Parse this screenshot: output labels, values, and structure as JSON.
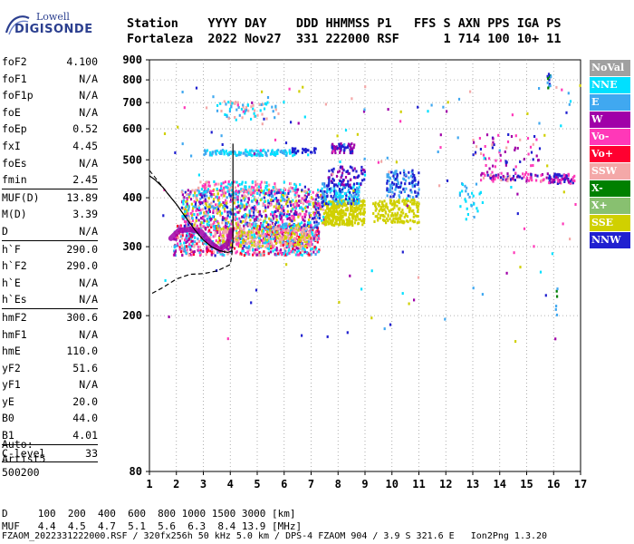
{
  "logo": {
    "line1": "Lowell",
    "line2": "DIGISONDE"
  },
  "header": {
    "labels": "Station    YYYY DAY    DDD HHMMSS P1   FFS S AXN PPS IGA PS",
    "values": "Fortaleza  2022 Nov27  331 222000 RSF      1 714 100 10+ 11"
  },
  "params": [
    [
      {
        "l": "foF2",
        "v": "4.100"
      },
      {
        "l": "foF1",
        "v": "N/A"
      },
      {
        "l": "foF1p",
        "v": "N/A"
      },
      {
        "l": "foE",
        "v": "N/A"
      },
      {
        "l": "foEp",
        "v": "0.52"
      },
      {
        "l": "fxI",
        "v": "4.45"
      },
      {
        "l": "foEs",
        "v": "N/A"
      },
      {
        "l": "fmin",
        "v": "2.45"
      }
    ],
    [
      {
        "l": "MUF(D)",
        "v": "13.89"
      },
      {
        "l": "M(D)",
        "v": "3.39"
      },
      {
        "l": "D",
        "v": "N/A"
      }
    ],
    [
      {
        "l": "h`F",
        "v": "290.0"
      },
      {
        "l": "h`F2",
        "v": "290.0"
      },
      {
        "l": "h`E",
        "v": "N/A"
      },
      {
        "l": "h`Es",
        "v": "N/A"
      }
    ],
    [
      {
        "l": "hmF2",
        "v": "300.6"
      },
      {
        "l": "hmF1",
        "v": "N/A"
      },
      {
        "l": "hmE",
        "v": "110.0"
      },
      {
        "l": "yF2",
        "v": "51.6"
      },
      {
        "l": "yF1",
        "v": "N/A"
      },
      {
        "l": "yE",
        "v": "20.0"
      },
      {
        "l": "B0",
        "v": "44.0"
      },
      {
        "l": "B1",
        "v": "4.01"
      }
    ],
    [
      {
        "l": "C-level",
        "v": "33"
      }
    ]
  ],
  "auto": {
    "line1": "Auto:",
    "line2": "Artist5",
    "line3": "500200"
  },
  "legend": [
    {
      "label": "NoVal",
      "color": "#a0a0a0"
    },
    {
      "label": "NNE",
      "color": "#00e0ff"
    },
    {
      "label": "E",
      "color": "#40a8f0"
    },
    {
      "label": "W",
      "color": "#a000a8"
    },
    {
      "label": "Vo-",
      "color": "#ff38b8"
    },
    {
      "label": "Vo+",
      "color": "#ff0030"
    },
    {
      "label": "SSW",
      "color": "#f4a8a8"
    },
    {
      "label": "X-",
      "color": "#008000"
    },
    {
      "label": "X+",
      "color": "#88c070"
    },
    {
      "label": "SSE",
      "color": "#d0d000"
    },
    {
      "label": "NNW",
      "color": "#2020d0"
    }
  ],
  "bottom": {
    "line1": "D     100  200  400  600  800 1000 1500 3000 [km]",
    "line2": "MUF   4.4  4.5  4.7  5.1  5.6  6.3  8.4 13.9 [MHz]"
  },
  "footer": "FZAOM_2022331222000.RSF / 320fx256h 50 kHz 5.0 km / DPS-4 FZAOM 904 / 3.9 S 321.6 E   Ion2Png 1.3.20",
  "chart_data": {
    "type": "scatter",
    "x_ticks": [
      "1",
      "2",
      "3",
      "4",
      "5",
      "6",
      "7",
      "8",
      "9",
      "10",
      "11",
      "12",
      "13",
      "14",
      "15",
      "16",
      "17"
    ],
    "y_ticks": [
      "80",
      "200",
      "300",
      "400",
      "500",
      "600",
      "700",
      "800",
      "900"
    ],
    "xlim": [
      1,
      17
    ],
    "ylim": [
      80,
      900
    ],
    "grid": true,
    "legend_position": "right",
    "clusters": [
      {
        "x": [
          1.9,
          7.3
        ],
        "y": [
          285,
          340
        ],
        "n": 900,
        "colors": [
          "#ff38b8",
          "#a000a8",
          "#40a8f0",
          "#00e0ff",
          "#ff0030",
          "#f4a8a8"
        ]
      },
      {
        "x": [
          2.2,
          7.5
        ],
        "y": [
          335,
          420
        ],
        "n": 900,
        "colors": [
          "#ff38b8",
          "#a000a8",
          "#00e0ff",
          "#40a8f0",
          "#f4a8a8",
          "#2020d0",
          "#d0d000"
        ]
      },
      {
        "x": [
          2.8,
          6.5
        ],
        "y": [
          410,
          440
        ],
        "n": 140,
        "colors": [
          "#ff38b8",
          "#f4a8a8",
          "#00e0ff"
        ]
      },
      {
        "x": [
          3.5,
          7.0
        ],
        "y": [
          300,
          335
        ],
        "n": 220,
        "colors": [
          "#d0d000",
          "#f4a8a8"
        ]
      },
      {
        "x": [
          7.5,
          9.0
        ],
        "y": [
          340,
          395
        ],
        "n": 320,
        "colors": [
          "#d0d000"
        ]
      },
      {
        "x": [
          9.3,
          11.0
        ],
        "y": [
          345,
          395
        ],
        "n": 170,
        "colors": [
          "#d0d000"
        ]
      },
      {
        "x": [
          7.4,
          8.8
        ],
        "y": [
          385,
          435
        ],
        "n": 160,
        "colors": [
          "#40a8f0",
          "#00e0ff",
          "#2020d0"
        ]
      },
      {
        "x": [
          7.6,
          9.0
        ],
        "y": [
          430,
          480
        ],
        "n": 70,
        "colors": [
          "#2020d0",
          "#a000a8"
        ]
      },
      {
        "x": [
          9.8,
          11.0
        ],
        "y": [
          400,
          470
        ],
        "n": 120,
        "colors": [
          "#2020d0",
          "#40a8f0"
        ]
      },
      {
        "x": [
          3.0,
          6.5
        ],
        "y": [
          512,
          530
        ],
        "n": 130,
        "colors": [
          "#40a8f0",
          "#00e0ff"
        ]
      },
      {
        "x": [
          6.3,
          7.2
        ],
        "y": [
          520,
          535
        ],
        "n": 30,
        "colors": [
          "#2020d0"
        ]
      },
      {
        "x": [
          7.7,
          8.6
        ],
        "y": [
          520,
          550
        ],
        "n": 60,
        "colors": [
          "#2020d0",
          "#a000a8"
        ]
      },
      {
        "x": [
          3.5,
          5.8
        ],
        "y": [
          632,
          705
        ],
        "n": 70,
        "colors": [
          "#40a8f0",
          "#00e0ff",
          "#f4a8a8"
        ]
      },
      {
        "x": [
          13.3,
          15.8
        ],
        "y": [
          440,
          465
        ],
        "n": 80,
        "colors": [
          "#a000a8",
          "#ff38b8",
          "#f4a8a8",
          "#2020d0"
        ]
      },
      {
        "x": [
          15.8,
          16.8
        ],
        "y": [
          435,
          460
        ],
        "n": 70,
        "colors": [
          "#a000a8",
          "#ff38b8",
          "#2020d0"
        ]
      },
      {
        "x": [
          13.0,
          15.5
        ],
        "y": [
          480,
          580
        ],
        "n": 60,
        "colors": [
          "#f4a8a8",
          "#2020d0",
          "#a000a8",
          "#ff38b8"
        ]
      },
      {
        "x": [
          15.75,
          15.9
        ],
        "y": [
          760,
          830
        ],
        "n": 15,
        "colors": [
          "#2020d0",
          "#40a8f0",
          "#008000"
        ]
      },
      {
        "x": [
          16.05,
          16.15
        ],
        "y": [
          200,
          240
        ],
        "n": 6,
        "colors": [
          "#008000",
          "#40a8f0"
        ]
      },
      {
        "x": [
          12.5,
          13.5
        ],
        "y": [
          350,
          440
        ],
        "n": 30,
        "colors": [
          "#00e0ff",
          "#40a8f0"
        ]
      },
      {
        "x": [
          1.5,
          17
        ],
        "y": [
          170,
          780
        ],
        "n": 160,
        "colors": [
          "#f4a8a8",
          "#40a8f0",
          "#2020d0",
          "#ff38b8",
          "#a000a8",
          "#d0d000",
          "#00e0ff"
        ]
      }
    ],
    "profile": {
      "x": [
        1.0,
        1.2,
        1.5,
        1.7,
        2.0,
        2.3,
        2.7,
        3.0,
        3.3,
        3.6,
        3.9,
        4.05,
        4.1,
        4.1,
        4.1
      ],
      "y": [
        455,
        445,
        425,
        408,
        385,
        360,
        330,
        312,
        300,
        293,
        290,
        292,
        310,
        400,
        550
      ]
    },
    "profile_low": {
      "x": [
        1.1,
        1.5,
        2.0,
        2.5,
        3.0,
        3.5,
        4.0,
        4.1
      ],
      "y": [
        228,
        236,
        248,
        255,
        256,
        260,
        270,
        300
      ]
    },
    "trace": {
      "x": [
        1.8,
        2.1,
        2.5,
        2.9,
        3.3,
        3.6,
        3.9,
        4.05
      ],
      "y": [
        315,
        330,
        332,
        328,
        305,
        295,
        305,
        330
      ]
    }
  }
}
